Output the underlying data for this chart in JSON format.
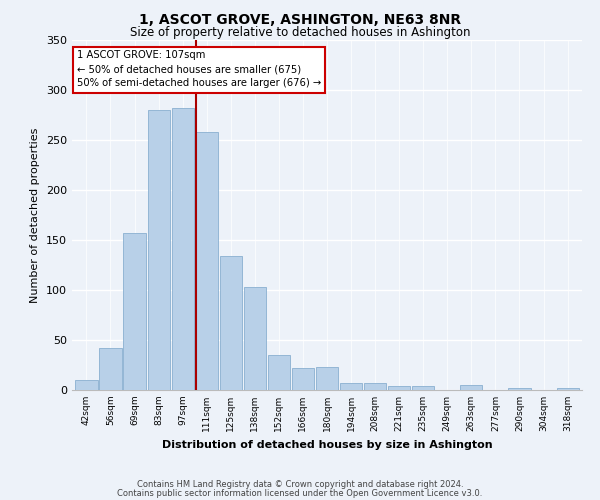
{
  "title": "1, ASCOT GROVE, ASHINGTON, NE63 8NR",
  "subtitle": "Size of property relative to detached houses in Ashington",
  "xlabel": "Distribution of detached houses by size in Ashington",
  "ylabel": "Number of detached properties",
  "bar_labels": [
    "42sqm",
    "56sqm",
    "69sqm",
    "83sqm",
    "97sqm",
    "111sqm",
    "125sqm",
    "138sqm",
    "152sqm",
    "166sqm",
    "180sqm",
    "194sqm",
    "208sqm",
    "221sqm",
    "235sqm",
    "249sqm",
    "263sqm",
    "277sqm",
    "290sqm",
    "304sqm",
    "318sqm"
  ],
  "bar_values": [
    10,
    42,
    157,
    280,
    282,
    258,
    134,
    103,
    35,
    22,
    23,
    7,
    7,
    4,
    4,
    0,
    5,
    0,
    2,
    0,
    2
  ],
  "bar_color": "#b8d0e8",
  "highlight_bar_index": 5,
  "highlight_color": "#aa0000",
  "annotation_title": "1 ASCOT GROVE: 107sqm",
  "annotation_line1": "← 50% of detached houses are smaller (675)",
  "annotation_line2": "50% of semi-detached houses are larger (676) →",
  "ylim": [
    0,
    350
  ],
  "yticks": [
    0,
    50,
    100,
    150,
    200,
    250,
    300,
    350
  ],
  "footnote1": "Contains HM Land Registry data © Crown copyright and database right 2024.",
  "footnote2": "Contains public sector information licensed under the Open Government Licence v3.0.",
  "background_color": "#edf2f9"
}
